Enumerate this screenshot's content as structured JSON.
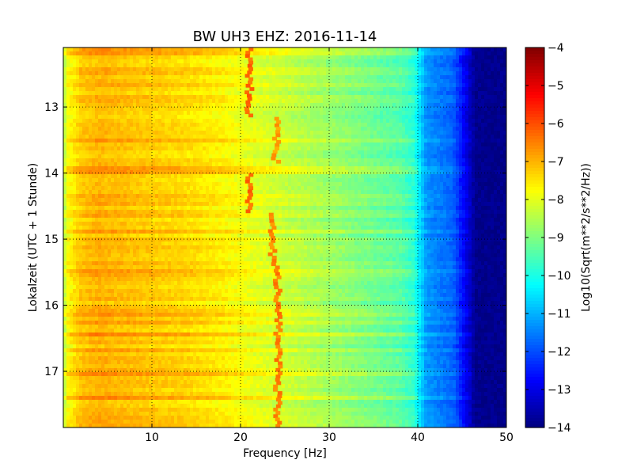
{
  "chart_data": {
    "type": "heatmap",
    "title": "BW UH3 EHZ: 2016-11-14",
    "xlabel": "Frequency [Hz]",
    "ylabel": "Lokalzeit (UTC + 1 Stunde)",
    "colorbar_label": "Log10(Sqrt(m**2/s**2/Hz))",
    "xlim": [
      0,
      50
    ],
    "ylim": [
      12.1,
      17.85
    ],
    "y_inverted": true,
    "xticks": [
      10,
      20,
      30,
      40,
      50
    ],
    "yticks": [
      13,
      14,
      15,
      16,
      17
    ],
    "clim": [
      -14,
      -4
    ],
    "colorbar_ticks": [
      -4,
      -5,
      -6,
      -7,
      -8,
      -9,
      -10,
      -11,
      -12,
      -13,
      -14
    ],
    "colormap": "jet",
    "grid": true,
    "profile": {
      "frequency_hz": [
        0,
        0.5,
        2,
        4,
        6,
        10,
        14,
        18,
        22,
        26,
        30,
        34,
        38,
        39.5,
        41,
        44,
        45.5,
        46.5,
        50
      ],
      "log_amplitude": [
        -8.6,
        -7.8,
        -7.2,
        -7.0,
        -7.1,
        -7.25,
        -7.4,
        -7.65,
        -8.05,
        -8.35,
        -8.7,
        -9.05,
        -9.4,
        -9.8,
        -11.3,
        -11.8,
        -13.0,
        -13.85,
        -13.9
      ]
    },
    "spectral_lines": [
      {
        "frequency_hz": 21.0,
        "start_time": 12.1,
        "end_time": 13.15,
        "log_amplitude": -6.3
      },
      {
        "frequency_hz": 24.0,
        "start_time": 13.15,
        "end_time": 13.85,
        "log_amplitude": -6.8
      },
      {
        "frequency_hz": 21.0,
        "start_time": 14.0,
        "end_time": 14.6,
        "log_amplitude": -6.3
      },
      {
        "frequency_hz": 23.6,
        "start_time": 14.6,
        "end_time": 15.4,
        "log_amplitude": -6.6
      },
      {
        "frequency_hz": 24.2,
        "start_time": 15.4,
        "end_time": 17.85,
        "log_amplitude": -6.5
      }
    ]
  }
}
